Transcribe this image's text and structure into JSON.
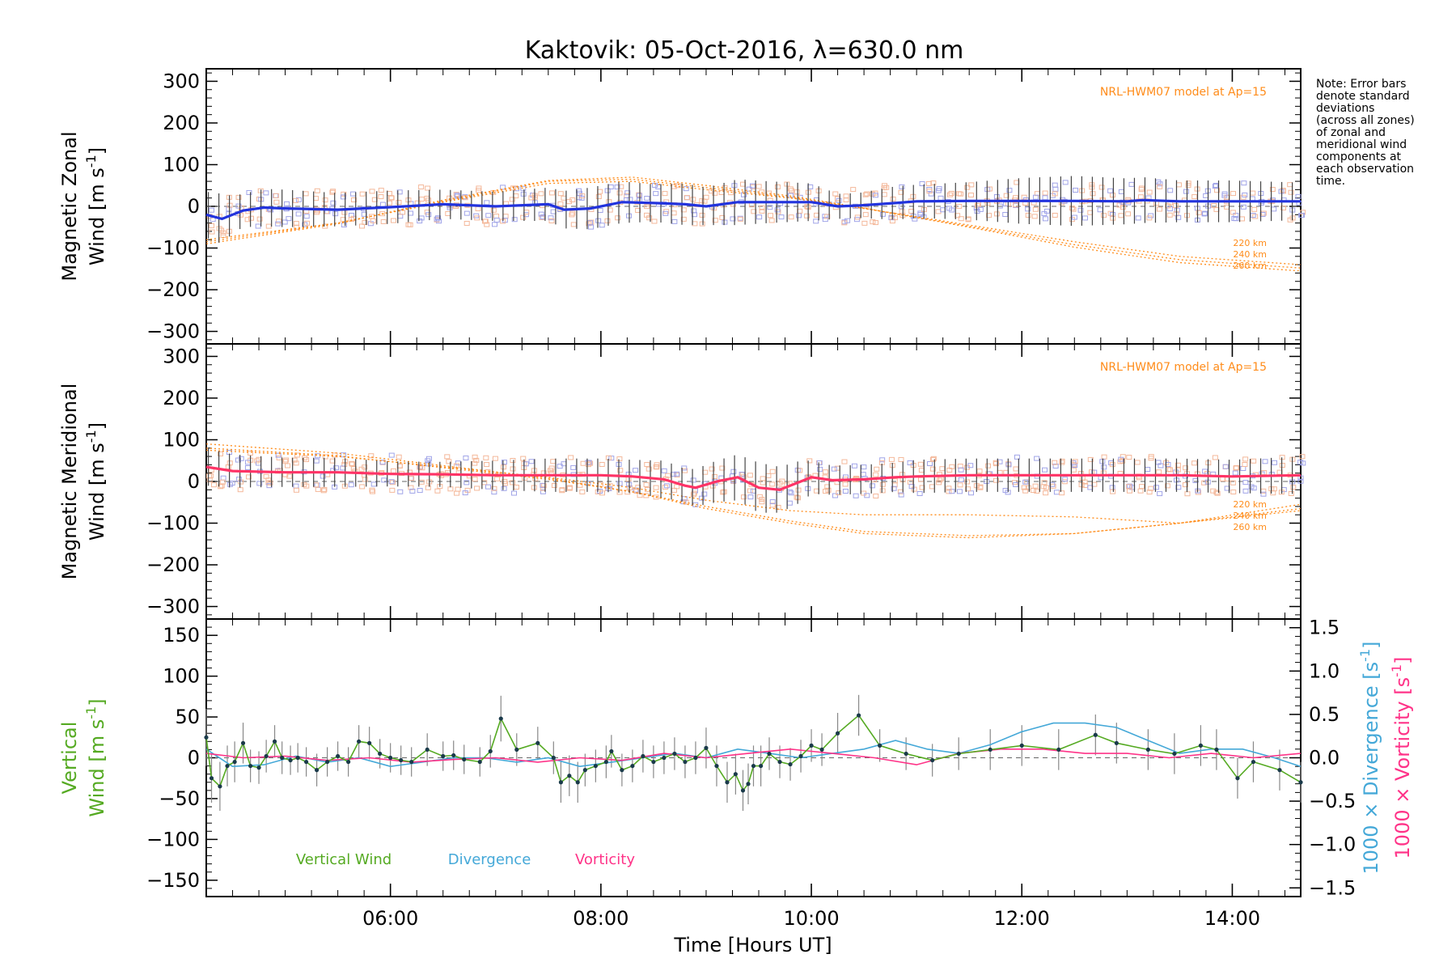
{
  "title": "Kaktovik: 05-Oct-2016, λ=630.0 nm",
  "note_lines": [
    "Note: Error bars",
    "denote standard",
    "deviations",
    "(across all zones)",
    "of zonal and",
    "meridional wind",
    "components at",
    "each observation",
    "time."
  ],
  "x_axis": {
    "label": "Time [Hours UT]",
    "range_hours": [
      4.25,
      14.65
    ],
    "ticks": [
      {
        "h": 6,
        "label": "06:00"
      },
      {
        "h": 8,
        "label": "08:00"
      },
      {
        "h": 10,
        "label": "10:00"
      },
      {
        "h": 12,
        "label": "12:00"
      },
      {
        "h": 14,
        "label": "14:00"
      }
    ]
  },
  "colors": {
    "zonal_mean": "#2233dd",
    "meridional_mean": "#ff3366",
    "model": "#ff8c1a",
    "zone_samples_light": "#f4b89a",
    "zone_samples_blue": "#a0a4e8",
    "vertical": "#55aa22",
    "divergence": "#44a8d8",
    "vorticity": "#ff3388",
    "error_bar": "#444444"
  },
  "chart_data": [
    {
      "id": "zonal",
      "type": "line",
      "ylabel_line1": "Magnetic Zonal",
      "ylabel_line2": "Wind [m s",
      "ylabel_sup": "-1",
      "ylabel_close": "]",
      "ylim": [
        -330,
        330
      ],
      "yticks": [
        -300,
        -200,
        -100,
        0,
        100,
        200,
        300
      ],
      "model_label": "NRL-HWM07 model at Ap=15",
      "model_curves": [
        {
          "name": "220 km",
          "x": [
            4.25,
            5.5,
            6.5,
            7.5,
            8.3,
            9.0,
            9.8,
            10.5,
            11.5,
            12.5,
            13.5,
            14.65
          ],
          "y": [
            -80,
            -40,
            10,
            55,
            60,
            40,
            20,
            -5,
            -45,
            -85,
            -120,
            -140
          ]
        },
        {
          "name": "240 km",
          "x": [
            4.25,
            5.5,
            6.5,
            7.5,
            8.3,
            9.0,
            9.8,
            10.5,
            11.5,
            12.5,
            13.5,
            14.65
          ],
          "y": [
            -85,
            -40,
            12,
            60,
            65,
            45,
            22,
            -5,
            -48,
            -92,
            -128,
            -148
          ]
        },
        {
          "name": "260 km",
          "x": [
            4.25,
            5.5,
            6.5,
            7.5,
            8.3,
            9.0,
            9.8,
            10.5,
            11.5,
            12.5,
            13.5,
            14.65
          ],
          "y": [
            -90,
            -42,
            15,
            62,
            70,
            50,
            25,
            -4,
            -50,
            -98,
            -135,
            -155
          ]
        }
      ],
      "mean": {
        "x": [
          4.25,
          4.4,
          4.5,
          4.6,
          4.8,
          5.0,
          5.5,
          6.0,
          6.5,
          7.0,
          7.5,
          7.65,
          7.9,
          8.2,
          8.5,
          8.8,
          9.0,
          9.3,
          9.6,
          10.0,
          10.25,
          10.45,
          10.8,
          11.0,
          11.5,
          12.0,
          12.5,
          13.0,
          13.15,
          13.5,
          14.0,
          14.65
        ],
        "y": [
          -20,
          -30,
          -20,
          -10,
          -3,
          -5,
          -8,
          -2,
          5,
          0,
          5,
          -8,
          -5,
          10,
          8,
          5,
          0,
          10,
          10,
          10,
          0,
          2,
          8,
          12,
          13,
          13,
          13,
          12,
          15,
          12,
          12,
          12
        ]
      },
      "error_bar_std": [
        55,
        60,
        45,
        40,
        45,
        45,
        40,
        40,
        35,
        35,
        40,
        45,
        50,
        50,
        45,
        50,
        45,
        55,
        50,
        45,
        30,
        30,
        40,
        40,
        45,
        55,
        60,
        55,
        55,
        50,
        50,
        45
      ]
    },
    {
      "id": "meridional",
      "type": "line",
      "ylabel_line1": "Magnetic Meridional",
      "ylabel_line2": "Wind [m s",
      "ylabel_sup": "-1",
      "ylabel_close": "]",
      "ylim": [
        -330,
        330
      ],
      "yticks": [
        -300,
        -200,
        -100,
        0,
        100,
        200,
        300
      ],
      "model_label": "NRL-HWM07 model at Ap=15",
      "model_curves": [
        {
          "name": "220 km",
          "x": [
            4.25,
            5.5,
            6.5,
            7.5,
            8.3,
            9.0,
            9.8,
            10.5,
            11.5,
            12.5,
            13.5,
            14.65
          ],
          "y": [
            75,
            60,
            35,
            10,
            -15,
            -45,
            -70,
            -80,
            -80,
            -85,
            -100,
            -70
          ]
        },
        {
          "name": "240 km",
          "x": [
            4.25,
            5.5,
            6.5,
            7.5,
            8.3,
            9.0,
            9.8,
            10.5,
            11.5,
            12.5,
            13.5,
            14.65
          ],
          "y": [
            80,
            62,
            33,
            5,
            -25,
            -60,
            -95,
            -120,
            -130,
            -125,
            -100,
            -65
          ]
        },
        {
          "name": "260 km",
          "x": [
            4.25,
            5.5,
            6.5,
            7.5,
            8.3,
            9.0,
            9.8,
            10.5,
            11.5,
            12.5,
            13.5,
            14.65
          ],
          "y": [
            90,
            68,
            38,
            8,
            -25,
            -65,
            -100,
            -125,
            -135,
            -125,
            -100,
            -55
          ]
        }
      ],
      "mean": {
        "x": [
          4.25,
          4.5,
          5.0,
          5.5,
          6.0,
          6.5,
          7.0,
          7.5,
          8.0,
          8.3,
          8.6,
          8.8,
          8.9,
          9.1,
          9.3,
          9.5,
          9.7,
          9.9,
          10.0,
          10.2,
          10.5,
          10.8,
          11.0,
          11.5,
          12.0,
          12.5,
          13.0,
          13.5,
          14.0,
          14.65
        ],
        "y": [
          35,
          25,
          22,
          22,
          18,
          17,
          15,
          15,
          15,
          12,
          5,
          -10,
          -15,
          0,
          10,
          -15,
          -20,
          0,
          10,
          3,
          5,
          10,
          12,
          15,
          15,
          15,
          15,
          15,
          12,
          15
        ]
      },
      "error_bar_std": [
        45,
        40,
        35,
        35,
        30,
        30,
        35,
        40,
        40,
        40,
        45,
        40,
        45,
        50,
        55,
        60,
        55,
        50,
        40,
        35,
        35,
        35,
        40,
        40,
        40,
        40,
        40,
        40,
        40,
        45
      ]
    },
    {
      "id": "vertical",
      "type": "line",
      "ylabel_line1": "Vertical",
      "ylabel_line2": "Wind [m s",
      "ylabel_sup": "-1",
      "ylabel_close": "]",
      "right_label_div": "1000 × Divergence [s",
      "right_label_vor": "1000 × Vorticity [s",
      "right_label_sup": "-1",
      "right_label_close": "]",
      "ylim": [
        -170,
        170
      ],
      "yticks": [
        -150,
        -100,
        -50,
        0,
        50,
        100,
        150
      ],
      "y2lim": [
        -1.6,
        1.6
      ],
      "y2ticks": [
        -1.5,
        -1.0,
        -0.5,
        0.0,
        0.5,
        1.0,
        1.5
      ],
      "y2tick_labels": [
        "-1.5",
        "-1.0",
        "-0.5",
        "0.0",
        "0.5",
        "1.0",
        "1.5"
      ],
      "legend": [
        "Vertical Wind",
        "Divergence",
        "Vorticity"
      ],
      "series": [
        {
          "name": "Vertical Wind",
          "x": [
            4.25,
            4.3,
            4.38,
            4.45,
            4.52,
            4.6,
            4.67,
            4.75,
            4.82,
            4.9,
            4.97,
            5.05,
            5.12,
            5.2,
            5.3,
            5.4,
            5.5,
            5.6,
            5.7,
            5.8,
            5.9,
            6.0,
            6.1,
            6.2,
            6.35,
            6.5,
            6.6,
            6.7,
            6.85,
            6.95,
            7.05,
            7.2,
            7.4,
            7.55,
            7.62,
            7.7,
            7.78,
            7.85,
            7.95,
            8.05,
            8.1,
            8.2,
            8.3,
            8.4,
            8.5,
            8.6,
            8.7,
            8.8,
            8.9,
            9.0,
            9.1,
            9.2,
            9.28,
            9.35,
            9.4,
            9.45,
            9.52,
            9.6,
            9.7,
            9.8,
            9.9,
            10.0,
            10.1,
            10.25,
            10.45,
            10.65,
            10.9,
            11.15,
            11.4,
            11.7,
            12.0,
            12.35,
            12.7,
            12.9,
            13.2,
            13.45,
            13.7,
            13.85,
            14.05,
            14.2,
            14.45,
            14.65
          ],
          "y": [
            25,
            -25,
            -35,
            -10,
            -5,
            18,
            -10,
            -12,
            2,
            20,
            0,
            -3,
            0,
            -5,
            -15,
            -5,
            2,
            -5,
            20,
            18,
            5,
            0,
            -3,
            -5,
            10,
            2,
            3,
            -2,
            -5,
            8,
            48,
            10,
            18,
            0,
            -30,
            -22,
            -30,
            -15,
            -10,
            -5,
            8,
            -15,
            -10,
            2,
            -5,
            0,
            5,
            -5,
            0,
            12,
            -10,
            -30,
            -20,
            -40,
            -32,
            -10,
            -10,
            5,
            -5,
            -8,
            2,
            15,
            10,
            30,
            52,
            15,
            5,
            -3,
            5,
            10,
            15,
            10,
            28,
            18,
            10,
            5,
            15,
            10,
            -25,
            -5,
            -15,
            -30
          ],
          "std": [
            35,
            30,
            30,
            25,
            25,
            25,
            20,
            20,
            20,
            20,
            20,
            18,
            18,
            18,
            20,
            18,
            18,
            18,
            20,
            20,
            18,
            18,
            18,
            18,
            20,
            18,
            18,
            18,
            18,
            20,
            28,
            20,
            20,
            20,
            25,
            25,
            25,
            20,
            20,
            20,
            20,
            20,
            20,
            20,
            20,
            20,
            20,
            20,
            20,
            25,
            25,
            25,
            25,
            25,
            25,
            25,
            25,
            20,
            20,
            20,
            20,
            20,
            20,
            25,
            25,
            20,
            20,
            20,
            20,
            25,
            25,
            25,
            25,
            25,
            25,
            25,
            25,
            25,
            25,
            25,
            25,
            25
          ]
        },
        {
          "name": "Divergence",
          "x": [
            4.25,
            4.5,
            4.8,
            5.1,
            5.4,
            5.7,
            6.0,
            6.3,
            6.6,
            6.9,
            7.2,
            7.5,
            7.8,
            8.1,
            8.4,
            8.7,
            9.0,
            9.3,
            9.6,
            9.9,
            10.2,
            10.5,
            10.8,
            11.1,
            11.4,
            11.7,
            12.0,
            12.3,
            12.6,
            12.9,
            13.2,
            13.5,
            13.8,
            14.1,
            14.4,
            14.65
          ],
          "y": [
            0.1,
            -0.1,
            -0.08,
            0.02,
            -0.05,
            0.0,
            -0.1,
            -0.05,
            0.0,
            0.0,
            -0.05,
            0.0,
            -0.1,
            -0.05,
            0.0,
            0.05,
            0.0,
            0.1,
            0.05,
            0.0,
            0.05,
            0.1,
            0.2,
            0.1,
            0.05,
            0.15,
            0.3,
            0.4,
            0.4,
            0.35,
            0.2,
            0.05,
            0.1,
            0.1,
            0.0,
            -0.1
          ]
        },
        {
          "name": "Vorticity",
          "x": [
            4.25,
            4.6,
            5.0,
            5.4,
            5.8,
            6.2,
            6.6,
            7.0,
            7.4,
            7.8,
            8.2,
            8.6,
            9.0,
            9.4,
            9.8,
            10.2,
            10.6,
            11.0,
            11.4,
            11.8,
            12.2,
            12.6,
            13.0,
            13.4,
            13.8,
            14.2,
            14.65
          ],
          "y": [
            0.05,
            0.0,
            0.02,
            -0.03,
            0.0,
            -0.05,
            -0.02,
            0.0,
            -0.05,
            0.0,
            -0.03,
            0.05,
            0.0,
            0.05,
            0.1,
            0.05,
            0.0,
            -0.08,
            0.05,
            0.1,
            0.1,
            0.05,
            0.05,
            0.0,
            0.05,
            0.0,
            0.05
          ]
        }
      ]
    }
  ]
}
